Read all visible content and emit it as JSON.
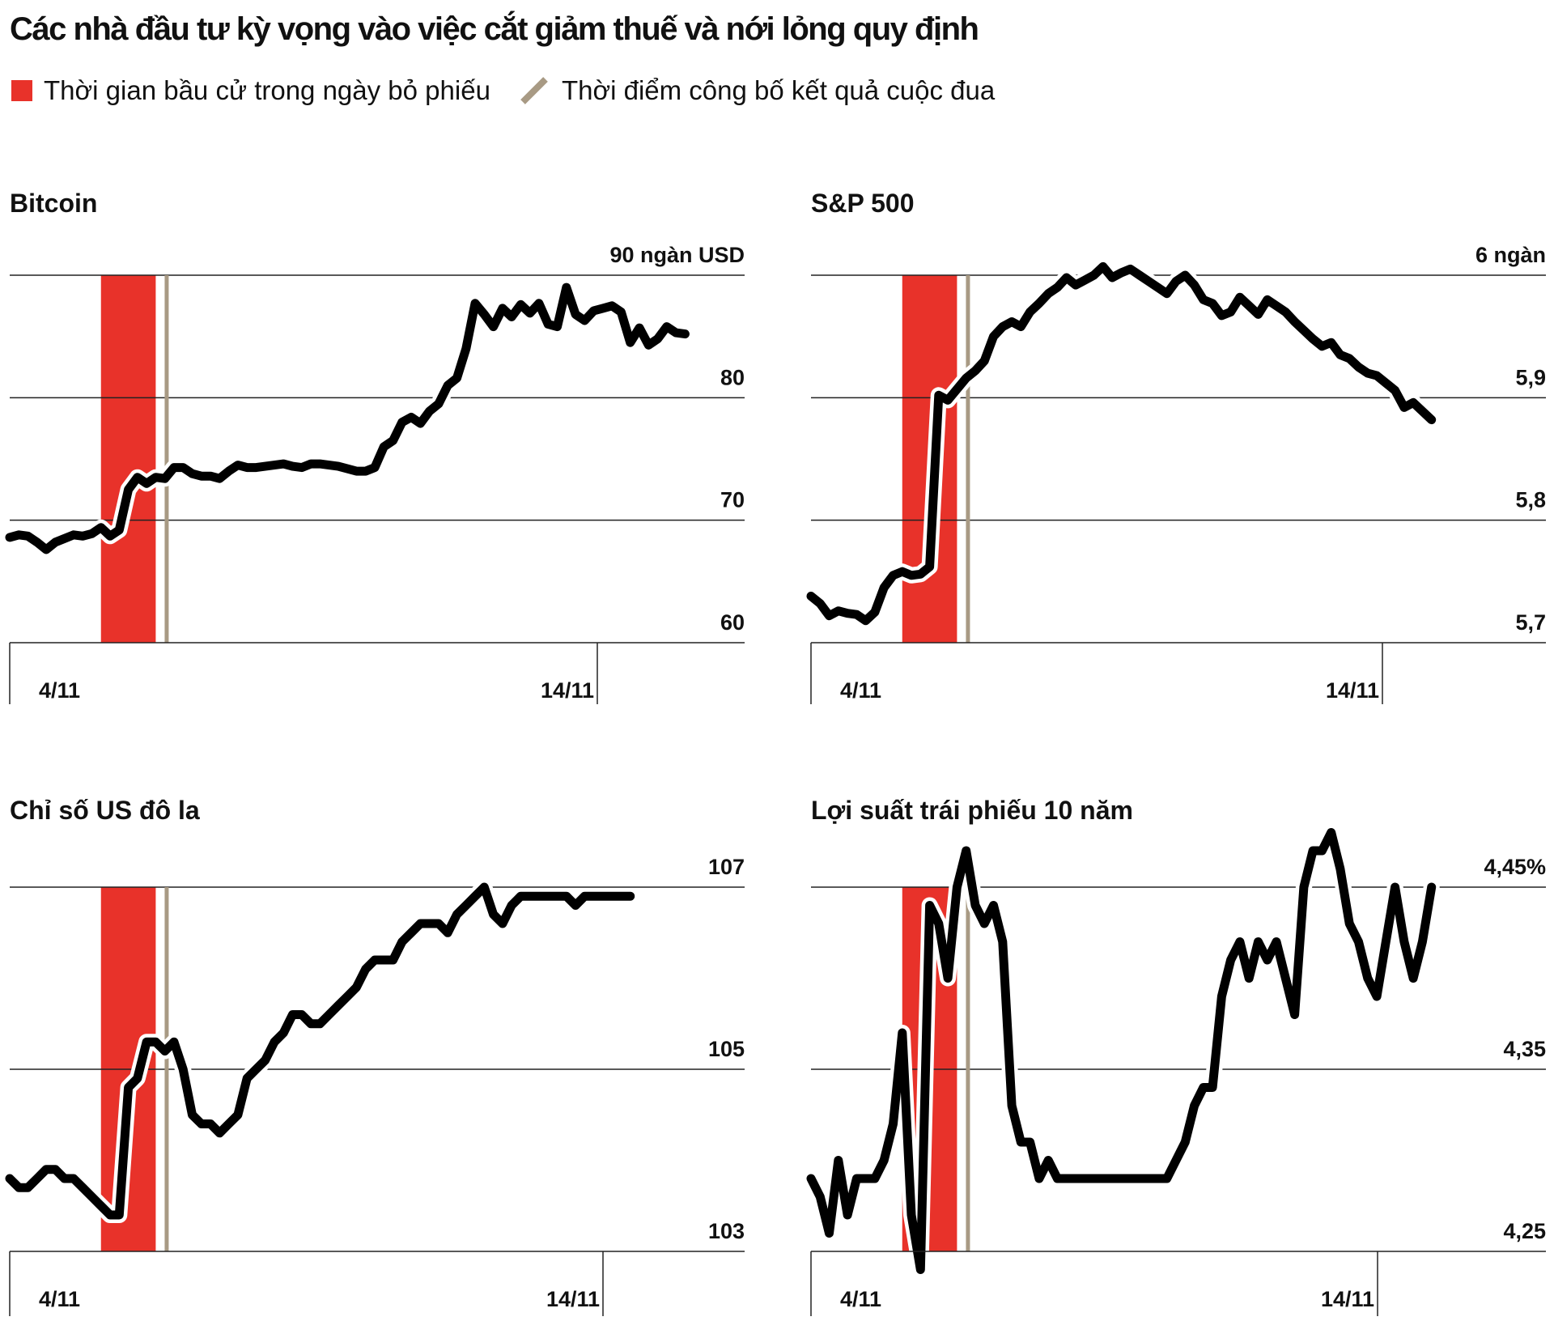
{
  "title": "Các nhà đầu tư kỳ vọng vào việc cắt giảm thuế và nới lỏng quy định",
  "legend": {
    "election_window": "Thời gian bầu cử trong ngày bỏ phiếu",
    "race_called": "Thời điểm công bố kết quả cuộc đua"
  },
  "colors": {
    "election_window": "#e8322a",
    "race_called": "#a89a84",
    "line": "#000000",
    "grid": "#222222"
  },
  "chart_data": [
    {
      "type": "line",
      "title": "Bitcoin",
      "unit_label": "90 ngàn USD",
      "y_ticks": [
        60,
        70,
        80,
        90
      ],
      "y_tick_labels": [
        "60",
        "70",
        "80",
        "90 ngàn USD"
      ],
      "ylim": [
        60,
        90
      ],
      "xlim": [
        0,
        40
      ],
      "x_tick_positions": [
        0,
        32
      ],
      "x_tick_labels": [
        "4/11",
        "14/11"
      ],
      "election_window": [
        5,
        8
      ],
      "race_called": 8.6,
      "x": [
        0,
        0.5,
        1,
        1.5,
        2,
        2.5,
        3,
        3.5,
        4,
        4.5,
        5,
        5.5,
        6,
        6.5,
        7,
        7.5,
        8,
        8.5,
        9,
        9.5,
        10,
        10.5,
        11,
        11.5,
        12,
        12.5,
        13,
        13.5,
        14,
        14.5,
        15,
        15.5,
        16,
        16.5,
        17,
        17.5,
        18,
        18.5,
        19,
        19.5,
        20,
        20.5,
        21,
        21.5,
        22,
        22.5,
        23,
        23.5,
        24,
        24.5,
        25,
        25.5,
        26,
        26.5,
        27,
        27.5,
        28,
        28.5,
        29,
        29.5,
        30,
        30.5,
        31,
        31.5,
        32,
        32.5,
        33,
        33.5,
        34,
        34.5,
        35,
        35.5,
        36,
        36.5,
        37
      ],
      "y": [
        68.6,
        68.8,
        68.7,
        68.2,
        67.6,
        68.2,
        68.5,
        68.8,
        68.7,
        68.9,
        69.4,
        68.7,
        69.2,
        72.5,
        73.5,
        73.0,
        73.5,
        73.4,
        74.3,
        74.3,
        73.8,
        73.6,
        73.6,
        73.4,
        74.0,
        74.5,
        74.3,
        74.3,
        74.4,
        74.5,
        74.6,
        74.4,
        74.3,
        74.6,
        74.6,
        74.5,
        74.4,
        74.2,
        74.0,
        74.0,
        74.3,
        76.0,
        76.5,
        78.0,
        78.4,
        77.9,
        78.9,
        79.5,
        81.0,
        81.6,
        84.0,
        87.7,
        86.8,
        85.8,
        87.3,
        86.6,
        87.6,
        86.9,
        87.7,
        86.0,
        85.8,
        89.0,
        86.8,
        86.3,
        87.1,
        87.3,
        87.5,
        87.0,
        84.5,
        85.7,
        84.3,
        84.8,
        85.8,
        85.3,
        85.2
      ]
    },
    {
      "type": "line",
      "title": "S&P 500",
      "unit_label": "6 ngàn",
      "y_ticks": [
        5.7,
        5.8,
        5.9,
        6.0
      ],
      "y_tick_labels": [
        "5,7",
        "5,8",
        "5,9",
        "6 ngàn"
      ],
      "ylim": [
        5.7,
        6.0
      ],
      "xlim": [
        0,
        40
      ],
      "x_tick_positions": [
        0,
        31
      ],
      "x_tick_labels": [
        "4/11",
        "14/11"
      ],
      "election_window": [
        5,
        8
      ],
      "race_called": 8.6,
      "x": [
        0,
        0.5,
        1,
        1.5,
        2,
        2.5,
        3,
        3.5,
        4,
        4.5,
        5,
        5.5,
        6,
        6.5,
        7,
        7.5,
        8,
        8.5,
        9,
        9.5,
        10,
        10.5,
        11,
        11.5,
        12,
        12.5,
        13,
        13.5,
        14,
        14.5,
        15,
        15.5,
        16,
        16.5,
        17,
        17.5,
        18,
        18.5,
        19,
        19.5,
        20,
        20.5,
        21,
        21.5,
        22,
        22.5,
        23,
        23.5,
        24,
        24.5,
        25,
        25.5,
        26,
        26.5,
        27,
        27.5,
        28,
        28.5,
        29,
        29.5,
        30,
        30.5,
        31,
        31.5,
        32,
        32.5,
        33,
        33.5,
        34
      ],
      "y": [
        5.738,
        5.732,
        5.722,
        5.726,
        5.724,
        5.723,
        5.718,
        5.725,
        5.745,
        5.755,
        5.758,
        5.755,
        5.756,
        5.762,
        5.902,
        5.898,
        5.907,
        5.916,
        5.922,
        5.93,
        5.95,
        5.958,
        5.962,
        5.958,
        5.97,
        5.977,
        5.985,
        5.99,
        5.998,
        5.992,
        5.996,
        6.0,
        6.007,
        5.998,
        6.002,
        6.005,
        6.0,
        5.995,
        5.99,
        5.985,
        5.995,
        6.0,
        5.992,
        5.98,
        5.977,
        5.967,
        5.97,
        5.982,
        5.975,
        5.968,
        5.98,
        5.975,
        5.97,
        5.962,
        5.955,
        5.948,
        5.942,
        5.945,
        5.935,
        5.932,
        5.925,
        5.92,
        5.918,
        5.912,
        5.906,
        5.892,
        5.896,
        5.889,
        5.882
      ]
    },
    {
      "type": "line",
      "title": "Chỉ số US đô la",
      "y_ticks": [
        103,
        105,
        107
      ],
      "y_tick_labels": [
        "103",
        "105",
        "107"
      ],
      "ylim": [
        103,
        107
      ],
      "xlim": [
        0,
        40
      ],
      "x_tick_positions": [
        0,
        32
      ],
      "x_tick_labels": [
        "4/11",
        "14/11"
      ],
      "election_window": [
        5,
        8
      ],
      "race_called": 8.6,
      "x": [
        0,
        0.5,
        1,
        1.5,
        2,
        2.5,
        3,
        3.5,
        4,
        4.5,
        5,
        5.5,
        6,
        6.5,
        7,
        7.5,
        8,
        8.5,
        9,
        9.5,
        10,
        10.5,
        11,
        11.5,
        12,
        12.5,
        13,
        13.5,
        14,
        14.5,
        15,
        15.5,
        16,
        16.5,
        17,
        17.5,
        18,
        18.5,
        19,
        19.5,
        20,
        20.5,
        21,
        21.5,
        22,
        22.5,
        23,
        23.5,
        24,
        24.5,
        25,
        25.5,
        26,
        26.5,
        27,
        27.5,
        28,
        28.5,
        29,
        29.5,
        30,
        30.5,
        31,
        31.5,
        32,
        32.5,
        33,
        33.5,
        34
      ],
      "y": [
        103.8,
        103.7,
        103.7,
        103.8,
        103.9,
        103.9,
        103.8,
        103.8,
        103.7,
        103.6,
        103.5,
        103.4,
        103.4,
        104.8,
        104.9,
        105.3,
        105.3,
        105.2,
        105.3,
        105.0,
        104.5,
        104.4,
        104.4,
        104.3,
        104.4,
        104.5,
        104.9,
        105.0,
        105.1,
        105.3,
        105.4,
        105.6,
        105.6,
        105.5,
        105.5,
        105.6,
        105.7,
        105.8,
        105.9,
        106.1,
        106.2,
        106.2,
        106.2,
        106.4,
        106.5,
        106.6,
        106.6,
        106.6,
        106.5,
        106.7,
        106.8,
        106.9,
        107.0,
        106.7,
        106.6,
        106.8,
        106.9,
        106.9,
        106.9,
        106.9,
        106.9,
        106.9,
        106.8,
        106.9,
        106.9,
        106.9,
        106.9,
        106.9,
        106.9
      ]
    },
    {
      "type": "line",
      "title": "Lợi suất trái phiếu 10 năm",
      "y_ticks": [
        4.25,
        4.35,
        4.45
      ],
      "y_tick_labels": [
        "4,25",
        "4,35",
        "4,45%"
      ],
      "ylim": [
        4.25,
        4.45
      ],
      "xlim": [
        0,
        40
      ],
      "x_tick_positions": [
        0,
        31
      ],
      "x_tick_labels": [
        "4/11",
        "14/11"
      ],
      "election_window": [
        5,
        8
      ],
      "race_called": 8.6,
      "x": [
        0,
        0.5,
        1,
        1.5,
        2,
        2.5,
        3,
        3.5,
        4,
        4.5,
        5,
        5.5,
        6,
        6.5,
        7,
        7.5,
        8,
        8.5,
        9,
        9.5,
        10,
        10.5,
        11,
        11.5,
        12,
        12.5,
        13,
        13.5,
        14,
        14.5,
        15,
        15.5,
        16,
        16.5,
        17,
        17.5,
        18,
        18.5,
        19,
        19.5,
        20,
        20.5,
        21,
        21.5,
        22,
        22.5,
        23,
        23.5,
        24,
        24.5,
        25,
        25.5,
        26,
        26.5,
        27,
        27.5,
        28,
        28.5,
        29,
        29.5,
        30,
        30.5,
        31,
        31.5,
        32,
        32.5,
        33,
        33.5,
        34
      ],
      "y": [
        4.29,
        4.28,
        4.26,
        4.3,
        4.27,
        4.29,
        4.29,
        4.29,
        4.3,
        4.32,
        4.37,
        4.27,
        4.24,
        4.44,
        4.43,
        4.4,
        4.45,
        4.47,
        4.44,
        4.43,
        4.44,
        4.42,
        4.33,
        4.31,
        4.31,
        4.29,
        4.3,
        4.29,
        4.29,
        4.29,
        4.29,
        4.29,
        4.29,
        4.29,
        4.29,
        4.29,
        4.29,
        4.29,
        4.29,
        4.29,
        4.3,
        4.31,
        4.33,
        4.34,
        4.34,
        4.39,
        4.41,
        4.42,
        4.4,
        4.42,
        4.41,
        4.42,
        4.4,
        4.38,
        4.45,
        4.47,
        4.47,
        4.48,
        4.46,
        4.43,
        4.42,
        4.4,
        4.39,
        4.42,
        4.45,
        4.42,
        4.4,
        4.42,
        4.45
      ]
    }
  ]
}
